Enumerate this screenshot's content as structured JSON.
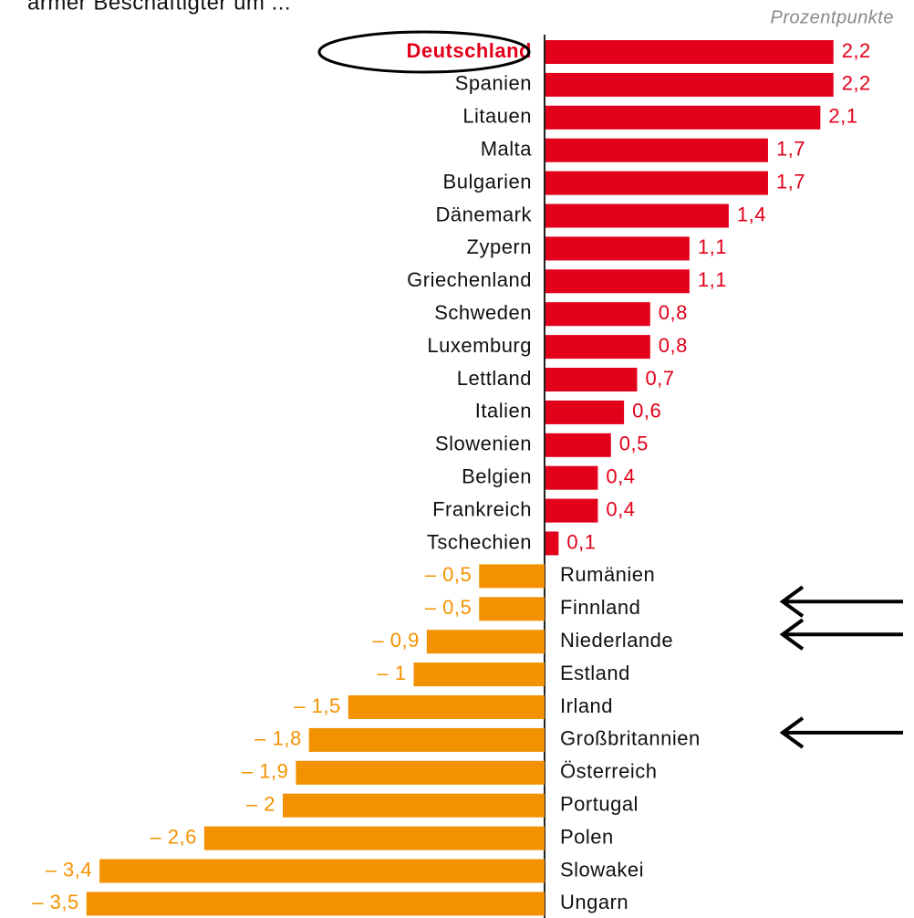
{
  "chart_data": {
    "type": "bar",
    "orientation": "horizontal",
    "title": "armer Beschäftigter um ...",
    "unit_label": "Prozentpunkte",
    "categories": [
      "Deutschland",
      "Spanien",
      "Litauen",
      "Malta",
      "Bulgarien",
      "Dänemark",
      "Zypern",
      "Griechenland",
      "Schweden",
      "Luxemburg",
      "Lettland",
      "Italien",
      "Slowenien",
      "Belgien",
      "Frankreich",
      "Tschechien",
      "Rumänien",
      "Finnland",
      "Niederlande",
      "Estland",
      "Irland",
      "Großbritannien",
      "Österreich",
      "Portugal",
      "Polen",
      "Slowakei",
      "Ungarn"
    ],
    "values": [
      2.2,
      2.2,
      2.1,
      1.7,
      1.7,
      1.4,
      1.1,
      1.1,
      0.8,
      0.8,
      0.7,
      0.6,
      0.5,
      0.4,
      0.4,
      0.1,
      -0.5,
      -0.5,
      -0.9,
      -1,
      -1.5,
      -1.8,
      -1.9,
      -2,
      -2.6,
      -3.4,
      -3.5
    ],
    "value_labels": [
      "2,2",
      "2,2",
      "2,1",
      "1,7",
      "1,7",
      "1,4",
      "1,1",
      "1,1",
      "0,8",
      "0,8",
      "0,7",
      "0,6",
      "0,5",
      "0,4",
      "0,4",
      "0,1",
      "– 0,5",
      "– 0,5",
      "– 0,9",
      "– 1",
      "– 1,5",
      "– 1,8",
      "– 1,9",
      "– 2",
      "– 2,6",
      "– 3,4",
      "– 3,5"
    ],
    "positive_color": "#e2001a",
    "negative_color": "#f39200",
    "highlight_index": 0,
    "arrow_indices": [
      17,
      18,
      21
    ]
  }
}
